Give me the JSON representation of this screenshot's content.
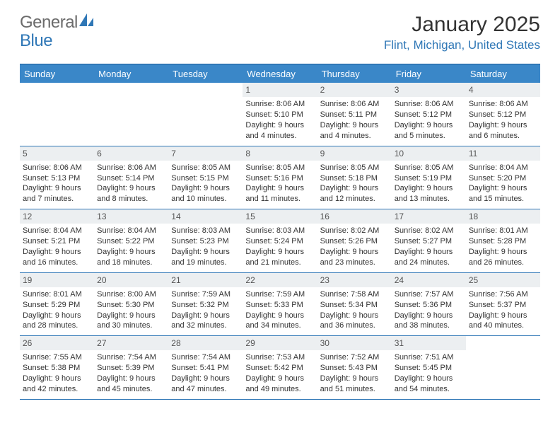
{
  "logo": {
    "part1": "General",
    "part2": "Blue"
  },
  "title": "January 2025",
  "location": "Flint, Michigan, United States",
  "colors": {
    "header_bg": "#3a87c8",
    "border": "#2f77b6",
    "daynum_bg": "#eceff1",
    "text": "#333333",
    "logo_gray": "#6b6b6b",
    "logo_blue": "#2f77b6"
  },
  "weekdays": [
    "Sunday",
    "Monday",
    "Tuesday",
    "Wednesday",
    "Thursday",
    "Friday",
    "Saturday"
  ],
  "weeks": [
    [
      null,
      null,
      null,
      {
        "d": "1",
        "sr": "8:06 AM",
        "ss": "5:10 PM",
        "dl": "9 hours and 4 minutes."
      },
      {
        "d": "2",
        "sr": "8:06 AM",
        "ss": "5:11 PM",
        "dl": "9 hours and 4 minutes."
      },
      {
        "d": "3",
        "sr": "8:06 AM",
        "ss": "5:12 PM",
        "dl": "9 hours and 5 minutes."
      },
      {
        "d": "4",
        "sr": "8:06 AM",
        "ss": "5:12 PM",
        "dl": "9 hours and 6 minutes."
      }
    ],
    [
      {
        "d": "5",
        "sr": "8:06 AM",
        "ss": "5:13 PM",
        "dl": "9 hours and 7 minutes."
      },
      {
        "d": "6",
        "sr": "8:06 AM",
        "ss": "5:14 PM",
        "dl": "9 hours and 8 minutes."
      },
      {
        "d": "7",
        "sr": "8:05 AM",
        "ss": "5:15 PM",
        "dl": "9 hours and 10 minutes."
      },
      {
        "d": "8",
        "sr": "8:05 AM",
        "ss": "5:16 PM",
        "dl": "9 hours and 11 minutes."
      },
      {
        "d": "9",
        "sr": "8:05 AM",
        "ss": "5:18 PM",
        "dl": "9 hours and 12 minutes."
      },
      {
        "d": "10",
        "sr": "8:05 AM",
        "ss": "5:19 PM",
        "dl": "9 hours and 13 minutes."
      },
      {
        "d": "11",
        "sr": "8:04 AM",
        "ss": "5:20 PM",
        "dl": "9 hours and 15 minutes."
      }
    ],
    [
      {
        "d": "12",
        "sr": "8:04 AM",
        "ss": "5:21 PM",
        "dl": "9 hours and 16 minutes."
      },
      {
        "d": "13",
        "sr": "8:04 AM",
        "ss": "5:22 PM",
        "dl": "9 hours and 18 minutes."
      },
      {
        "d": "14",
        "sr": "8:03 AM",
        "ss": "5:23 PM",
        "dl": "9 hours and 19 minutes."
      },
      {
        "d": "15",
        "sr": "8:03 AM",
        "ss": "5:24 PM",
        "dl": "9 hours and 21 minutes."
      },
      {
        "d": "16",
        "sr": "8:02 AM",
        "ss": "5:26 PM",
        "dl": "9 hours and 23 minutes."
      },
      {
        "d": "17",
        "sr": "8:02 AM",
        "ss": "5:27 PM",
        "dl": "9 hours and 24 minutes."
      },
      {
        "d": "18",
        "sr": "8:01 AM",
        "ss": "5:28 PM",
        "dl": "9 hours and 26 minutes."
      }
    ],
    [
      {
        "d": "19",
        "sr": "8:01 AM",
        "ss": "5:29 PM",
        "dl": "9 hours and 28 minutes."
      },
      {
        "d": "20",
        "sr": "8:00 AM",
        "ss": "5:30 PM",
        "dl": "9 hours and 30 minutes."
      },
      {
        "d": "21",
        "sr": "7:59 AM",
        "ss": "5:32 PM",
        "dl": "9 hours and 32 minutes."
      },
      {
        "d": "22",
        "sr": "7:59 AM",
        "ss": "5:33 PM",
        "dl": "9 hours and 34 minutes."
      },
      {
        "d": "23",
        "sr": "7:58 AM",
        "ss": "5:34 PM",
        "dl": "9 hours and 36 minutes."
      },
      {
        "d": "24",
        "sr": "7:57 AM",
        "ss": "5:36 PM",
        "dl": "9 hours and 38 minutes."
      },
      {
        "d": "25",
        "sr": "7:56 AM",
        "ss": "5:37 PM",
        "dl": "9 hours and 40 minutes."
      }
    ],
    [
      {
        "d": "26",
        "sr": "7:55 AM",
        "ss": "5:38 PM",
        "dl": "9 hours and 42 minutes."
      },
      {
        "d": "27",
        "sr": "7:54 AM",
        "ss": "5:39 PM",
        "dl": "9 hours and 45 minutes."
      },
      {
        "d": "28",
        "sr": "7:54 AM",
        "ss": "5:41 PM",
        "dl": "9 hours and 47 minutes."
      },
      {
        "d": "29",
        "sr": "7:53 AM",
        "ss": "5:42 PM",
        "dl": "9 hours and 49 minutes."
      },
      {
        "d": "30",
        "sr": "7:52 AM",
        "ss": "5:43 PM",
        "dl": "9 hours and 51 minutes."
      },
      {
        "d": "31",
        "sr": "7:51 AM",
        "ss": "5:45 PM",
        "dl": "9 hours and 54 minutes."
      },
      null
    ]
  ],
  "labels": {
    "sunrise": "Sunrise:",
    "sunset": "Sunset:",
    "daylight": "Daylight:"
  }
}
